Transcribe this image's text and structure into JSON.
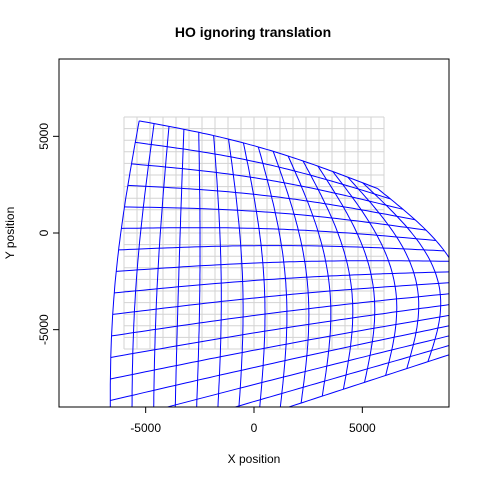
{
  "chart_data": {
    "type": "line",
    "title": "HO ignoring translation",
    "xlabel": "X position",
    "ylabel": "Y position",
    "xlim": [
      -9000,
      9000
    ],
    "ylim": [
      -9000,
      9000
    ],
    "xticks": [
      -5000,
      0,
      5000
    ],
    "yticks": [
      -5000,
      0,
      5000
    ],
    "xtick_labels": [
      "-5000",
      "0",
      "5000"
    ],
    "ytick_labels": [
      "-5000",
      "0",
      "5000"
    ],
    "grid_color": "#d3d3d3",
    "series_color": "#0000ff",
    "reference_grid": {
      "x_range": [
        -6000,
        6000
      ],
      "y_range": [
        -6000,
        6000
      ],
      "step": 600
    },
    "warped_grid": {
      "corners": {
        "top_left": [
          -5300,
          5800
        ],
        "top_right": [
          5700,
          2300
        ],
        "bottom_right": [
          9000,
          -6300
        ],
        "bottom_left": [
          -6600,
          -12000
        ]
      },
      "top_edge_sag": 400,
      "right_edge_bulge": 2000,
      "left_edge_bow": -500,
      "bottom_edge_curve": 0,
      "u_lines": 17,
      "v_lines": 17
    }
  }
}
